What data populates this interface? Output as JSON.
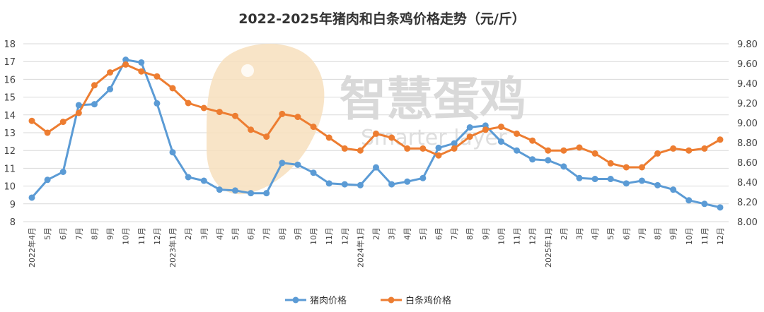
{
  "chart_data": {
    "type": "line",
    "title": "2022-2025年猪肉和白条鸡价格走势（元/斤）",
    "categories": [
      "2022年4月",
      "5月",
      "6月",
      "7月",
      "8月",
      "9月",
      "10月",
      "11月",
      "12月",
      "2023年1月",
      "2月",
      "3月",
      "4月",
      "5月",
      "6月",
      "7月",
      "8月",
      "9月",
      "10月",
      "11月",
      "12月",
      "2024年1月",
      "2月",
      "3月",
      "4月",
      "5月",
      "6月",
      "7月",
      "8月",
      "9月",
      "10月",
      "11月",
      "12月",
      "2025年1月",
      "2月",
      "3月",
      "4月",
      "5月",
      "6月",
      "7月",
      "8月",
      "9月",
      "10月",
      "11月",
      "12月"
    ],
    "y_left": {
      "ticks": [
        "8",
        "9",
        "10",
        "11",
        "12",
        "13",
        "14",
        "15",
        "16",
        "17",
        "18"
      ],
      "ylim": [
        8,
        18
      ]
    },
    "y_right": {
      "ticks": [
        "8.00",
        "8.20",
        "8.40",
        "8.60",
        "8.80",
        "9.00",
        "9.20",
        "9.40",
        "9.60",
        "9.80"
      ],
      "ylim": [
        8.0,
        9.8
      ]
    },
    "grid": true,
    "legend_position": "bottom",
    "series": [
      {
        "name": "猪肉价格",
        "axis": "left",
        "color": "#5b9bd5",
        "values": [
          9.35,
          10.35,
          10.8,
          14.55,
          14.6,
          15.45,
          17.1,
          16.95,
          14.65,
          11.9,
          10.5,
          10.3,
          9.8,
          9.75,
          9.6,
          9.6,
          11.3,
          11.2,
          10.75,
          10.15,
          10.1,
          10.05,
          11.05,
          10.1,
          10.25,
          10.45,
          12.15,
          12.4,
          13.3,
          13.4,
          12.5,
          12.0,
          11.5,
          11.45,
          11.1,
          10.45,
          10.4,
          10.4,
          10.15,
          10.3,
          10.05,
          9.8,
          9.2,
          9.0,
          8.8
        ]
      },
      {
        "name": "白条鸡价格",
        "axis": "right",
        "color": "#ed7d31",
        "values": [
          9.02,
          8.9,
          9.01,
          9.1,
          9.38,
          9.51,
          9.59,
          9.52,
          9.47,
          9.35,
          9.2,
          9.15,
          9.11,
          9.07,
          8.93,
          8.86,
          9.09,
          9.06,
          8.96,
          8.85,
          8.74,
          8.72,
          8.89,
          8.85,
          8.74,
          8.74,
          8.67,
          8.74,
          8.86,
          8.93,
          8.96,
          8.89,
          8.82,
          8.72,
          8.72,
          8.75,
          8.69,
          8.59,
          8.55,
          8.55,
          8.69,
          8.74,
          8.72,
          8.74,
          8.83
        ]
      }
    ]
  },
  "watermark": {
    "text": "智慧蛋鸡",
    "sub_text": "Smarter layer"
  },
  "colors": {
    "grid": "#d9d9d9",
    "axis_text": "#444444",
    "pork": "#5b9bd5",
    "chicken": "#ed7d31",
    "watermark_logo": "#f6dcb7"
  }
}
